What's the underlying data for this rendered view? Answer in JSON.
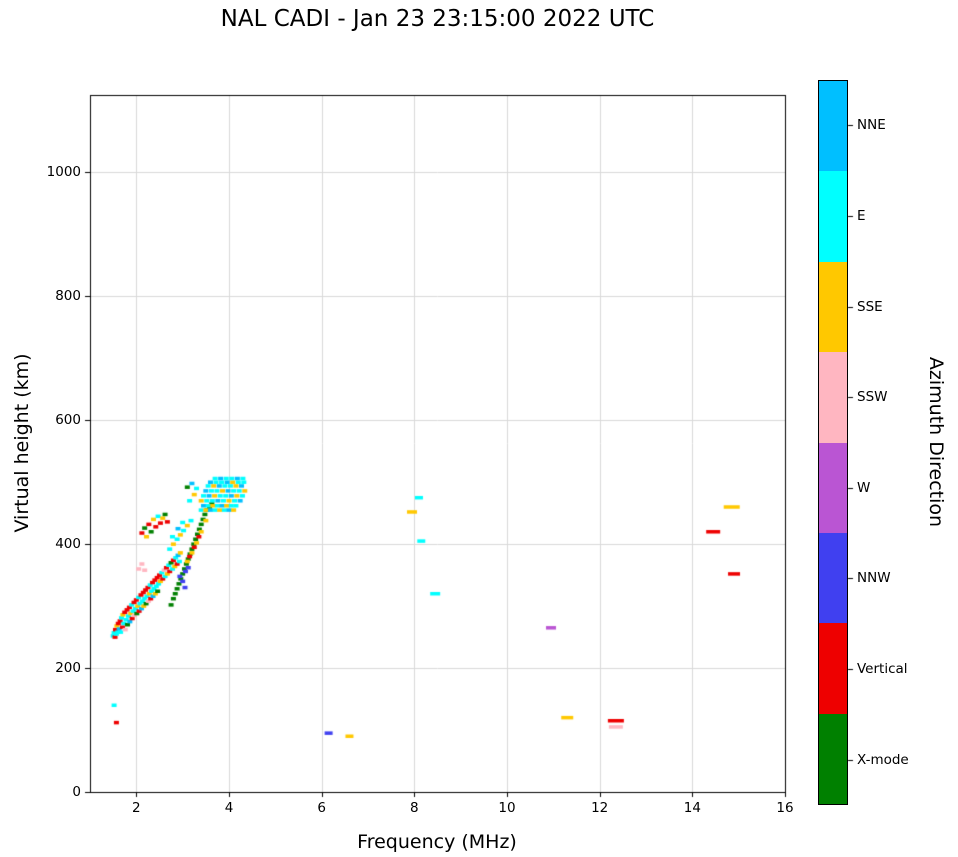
{
  "page": {
    "title": "NAL CADI - Jan 23 23:15:00 2022 UTC"
  },
  "chart_data": {
    "type": "scatter",
    "title": "NAL CADI - Jan 23 23:15:00 2022 UTC",
    "xlabel": "Frequency (MHz)",
    "ylabel": "Virtual height (km)",
    "colorbar_label": "Azimuth Direction",
    "xlim": [
      1,
      16
    ],
    "ylim": [
      0,
      1125
    ],
    "x_ticks": [
      2,
      4,
      6,
      8,
      10,
      12,
      14,
      16
    ],
    "y_ticks": [
      0,
      200,
      400,
      600,
      800,
      1000
    ],
    "grid": true,
    "legend_position": "right-colorbar",
    "categories": [
      {
        "label": "NNE",
        "color": "#00BFFF"
      },
      {
        "label": "E",
        "color": "#00FFFF"
      },
      {
        "label": "SSE",
        "color": "#FFC800"
      },
      {
        "label": "SSW",
        "color": "#FFB6C1"
      },
      {
        "label": "W",
        "color": "#BA55D3"
      },
      {
        "label": "NNW",
        "color": "#4040F0"
      },
      {
        "label": "Vertical",
        "color": "#EE0000"
      },
      {
        "label": "X-mode",
        "color": "#008000"
      }
    ],
    "points_format": [
      "freq_MHz",
      "virtual_height_km",
      "category_index",
      "dash_width_px_optional"
    ],
    "points": [
      [
        1.52,
        140,
        1
      ],
      [
        1.57,
        112,
        6
      ],
      [
        1.5,
        252,
        1
      ],
      [
        1.52,
        257,
        1
      ],
      [
        1.54,
        250,
        6
      ],
      [
        1.55,
        262,
        6
      ],
      [
        1.57,
        255,
        1
      ],
      [
        1.58,
        268,
        2
      ],
      [
        1.6,
        258,
        1
      ],
      [
        1.61,
        272,
        6
      ],
      [
        1.63,
        263,
        0
      ],
      [
        1.65,
        276,
        6
      ],
      [
        1.66,
        258,
        1
      ],
      [
        1.68,
        281,
        1
      ],
      [
        1.7,
        266,
        6
      ],
      [
        1.71,
        286,
        2
      ],
      [
        1.73,
        272,
        1
      ],
      [
        1.75,
        290,
        6
      ],
      [
        1.76,
        262,
        3
      ],
      [
        1.78,
        278,
        1
      ],
      [
        1.8,
        294,
        6
      ],
      [
        1.81,
        270,
        7
      ],
      [
        1.83,
        284,
        1
      ],
      [
        1.85,
        298,
        6
      ],
      [
        1.86,
        275,
        0
      ],
      [
        1.88,
        288,
        2
      ],
      [
        1.9,
        302,
        1
      ],
      [
        1.91,
        280,
        6
      ],
      [
        1.93,
        292,
        1
      ],
      [
        1.95,
        306,
        6
      ],
      [
        1.96,
        285,
        3
      ],
      [
        1.98,
        296,
        1
      ],
      [
        2.0,
        310,
        6
      ],
      [
        2.01,
        288,
        7
      ],
      [
        2.03,
        300,
        2
      ],
      [
        2.05,
        314,
        1
      ],
      [
        2.06,
        292,
        6
      ],
      [
        2.08,
        304,
        1
      ],
      [
        2.1,
        318,
        6
      ],
      [
        2.11,
        296,
        0
      ],
      [
        2.13,
        308,
        1
      ],
      [
        2.15,
        322,
        6
      ],
      [
        2.16,
        300,
        2
      ],
      [
        2.18,
        312,
        1
      ],
      [
        2.2,
        326,
        6
      ],
      [
        2.21,
        304,
        7
      ],
      [
        2.23,
        316,
        1
      ],
      [
        2.25,
        330,
        6
      ],
      [
        2.26,
        308,
        3
      ],
      [
        2.28,
        320,
        2
      ],
      [
        2.3,
        334,
        1
      ],
      [
        2.31,
        312,
        6
      ],
      [
        2.33,
        324,
        1
      ],
      [
        2.35,
        338,
        6
      ],
      [
        2.36,
        316,
        0
      ],
      [
        2.38,
        328,
        1
      ],
      [
        2.4,
        342,
        6
      ],
      [
        2.41,
        320,
        2
      ],
      [
        2.43,
        332,
        1
      ],
      [
        2.45,
        346,
        6
      ],
      [
        2.46,
        324,
        7
      ],
      [
        2.48,
        336,
        1
      ],
      [
        2.5,
        350,
        6
      ],
      [
        2.52,
        340,
        2
      ],
      [
        2.55,
        354,
        1
      ],
      [
        2.57,
        344,
        6
      ],
      [
        2.6,
        358,
        3
      ],
      [
        2.62,
        348,
        1
      ],
      [
        2.65,
        362,
        6
      ],
      [
        2.67,
        352,
        2
      ],
      [
        2.7,
        366,
        1
      ],
      [
        2.72,
        356,
        6
      ],
      [
        2.75,
        370,
        7
      ],
      [
        2.78,
        360,
        1
      ],
      [
        2.8,
        374,
        6
      ],
      [
        2.83,
        364,
        2
      ],
      [
        2.85,
        378,
        1
      ],
      [
        2.88,
        368,
        6
      ],
      [
        2.9,
        382,
        0
      ],
      [
        2.93,
        372,
        1
      ],
      [
        2.95,
        386,
        2
      ],
      [
        2.05,
        360,
        3
      ],
      [
        2.12,
        368,
        3
      ],
      [
        2.18,
        358,
        3
      ],
      [
        2.12,
        418,
        6
      ],
      [
        2.18,
        426,
        7
      ],
      [
        2.22,
        412,
        2
      ],
      [
        2.27,
        432,
        6
      ],
      [
        2.32,
        420,
        7
      ],
      [
        2.37,
        440,
        2
      ],
      [
        2.42,
        428,
        6
      ],
      [
        2.47,
        445,
        1
      ],
      [
        2.52,
        434,
        6
      ],
      [
        2.57,
        442,
        2
      ],
      [
        2.62,
        448,
        7
      ],
      [
        2.67,
        436,
        6
      ],
      [
        2.75,
        302,
        7
      ],
      [
        2.8,
        312,
        7
      ],
      [
        2.84,
        320,
        7
      ],
      [
        2.88,
        328,
        7
      ],
      [
        2.92,
        336,
        7
      ],
      [
        2.96,
        344,
        7
      ],
      [
        3.0,
        352,
        7
      ],
      [
        3.04,
        360,
        7
      ],
      [
        3.08,
        368,
        7
      ],
      [
        3.12,
        376,
        7
      ],
      [
        3.16,
        384,
        7
      ],
      [
        3.2,
        392,
        7
      ],
      [
        3.24,
        400,
        7
      ],
      [
        3.28,
        408,
        7
      ],
      [
        3.32,
        416,
        7
      ],
      [
        3.36,
        424,
        7
      ],
      [
        3.4,
        432,
        7
      ],
      [
        3.44,
        440,
        7
      ],
      [
        3.48,
        448,
        7
      ],
      [
        3.52,
        455,
        7
      ],
      [
        3.58,
        460,
        7
      ],
      [
        3.63,
        465,
        7
      ],
      [
        2.94,
        348,
        5
      ],
      [
        3.0,
        340,
        5
      ],
      [
        3.06,
        356,
        5
      ],
      [
        3.12,
        362,
        5
      ],
      [
        3.05,
        330,
        5
      ],
      [
        3.1,
        372,
        2
      ],
      [
        3.2,
        386,
        2
      ],
      [
        3.3,
        402,
        2
      ],
      [
        3.4,
        420,
        2
      ],
      [
        3.5,
        438,
        2
      ],
      [
        3.15,
        380,
        6
      ],
      [
        3.25,
        395,
        6
      ],
      [
        3.35,
        412,
        6
      ],
      [
        2.72,
        392,
        1
      ],
      [
        2.8,
        400,
        2
      ],
      [
        2.88,
        408,
        1
      ],
      [
        2.95,
        415,
        2
      ],
      [
        3.02,
        422,
        1
      ],
      [
        3.1,
        430,
        2
      ],
      [
        3.18,
        438,
        1
      ],
      [
        2.78,
        412,
        1
      ],
      [
        2.9,
        425,
        0
      ],
      [
        3.0,
        435,
        1
      ],
      [
        3.15,
        470,
        1
      ],
      [
        3.25,
        480,
        2
      ],
      [
        3.1,
        492,
        7
      ],
      [
        3.3,
        490,
        1
      ],
      [
        3.2,
        498,
        0
      ],
      [
        3.4,
        455,
        1
      ],
      [
        3.5,
        455,
        2
      ],
      [
        3.6,
        455,
        0
      ],
      [
        3.7,
        455,
        1
      ],
      [
        3.8,
        455,
        2
      ],
      [
        3.9,
        455,
        1
      ],
      [
        4.0,
        455,
        0
      ],
      [
        4.1,
        455,
        2
      ],
      [
        3.45,
        462,
        0
      ],
      [
        3.55,
        462,
        1
      ],
      [
        3.65,
        462,
        2
      ],
      [
        3.75,
        462,
        1
      ],
      [
        3.85,
        462,
        0
      ],
      [
        3.95,
        462,
        2
      ],
      [
        4.05,
        462,
        1
      ],
      [
        4.15,
        462,
        1
      ],
      [
        3.4,
        470,
        2
      ],
      [
        3.52,
        470,
        1
      ],
      [
        3.64,
        470,
        1
      ],
      [
        3.76,
        470,
        0
      ],
      [
        3.88,
        470,
        1
      ],
      [
        4.0,
        470,
        2
      ],
      [
        4.12,
        470,
        1
      ],
      [
        4.24,
        470,
        0
      ],
      [
        3.45,
        478,
        1
      ],
      [
        3.57,
        478,
        0
      ],
      [
        3.69,
        478,
        2
      ],
      [
        3.81,
        478,
        1
      ],
      [
        3.93,
        478,
        1
      ],
      [
        4.05,
        478,
        0
      ],
      [
        4.17,
        478,
        2
      ],
      [
        4.29,
        478,
        1
      ],
      [
        3.5,
        486,
        0
      ],
      [
        3.62,
        486,
        1
      ],
      [
        3.74,
        486,
        1
      ],
      [
        3.86,
        486,
        2
      ],
      [
        3.98,
        486,
        0
      ],
      [
        4.1,
        486,
        1
      ],
      [
        4.22,
        486,
        1
      ],
      [
        4.34,
        486,
        2
      ],
      [
        3.55,
        494,
        1
      ],
      [
        3.67,
        494,
        2
      ],
      [
        3.79,
        494,
        0
      ],
      [
        3.91,
        494,
        1
      ],
      [
        4.03,
        494,
        1
      ],
      [
        4.15,
        494,
        2
      ],
      [
        4.27,
        494,
        0
      ],
      [
        3.6,
        500,
        0
      ],
      [
        3.72,
        500,
        1
      ],
      [
        3.84,
        500,
        1
      ],
      [
        3.96,
        500,
        0
      ],
      [
        4.08,
        500,
        2
      ],
      [
        4.2,
        500,
        1
      ],
      [
        4.32,
        500,
        1
      ],
      [
        3.7,
        506,
        1
      ],
      [
        3.82,
        506,
        0
      ],
      [
        3.94,
        506,
        1
      ],
      [
        4.06,
        506,
        1
      ],
      [
        4.18,
        506,
        0
      ],
      [
        4.3,
        506,
        1
      ],
      [
        6.15,
        95,
        5,
        8
      ],
      [
        6.6,
        90,
        2,
        8
      ],
      [
        7.95,
        452,
        2,
        10
      ],
      [
        8.1,
        475,
        1,
        8
      ],
      [
        8.15,
        405,
        1,
        8
      ],
      [
        8.45,
        320,
        1,
        10
      ],
      [
        10.95,
        265,
        4,
        10
      ],
      [
        11.3,
        120,
        2,
        12
      ],
      [
        12.35,
        115,
        6,
        16
      ],
      [
        12.35,
        105,
        3,
        14
      ],
      [
        14.45,
        420,
        6,
        14
      ],
      [
        14.85,
        460,
        2,
        16
      ],
      [
        14.9,
        352,
        6,
        12
      ]
    ]
  }
}
